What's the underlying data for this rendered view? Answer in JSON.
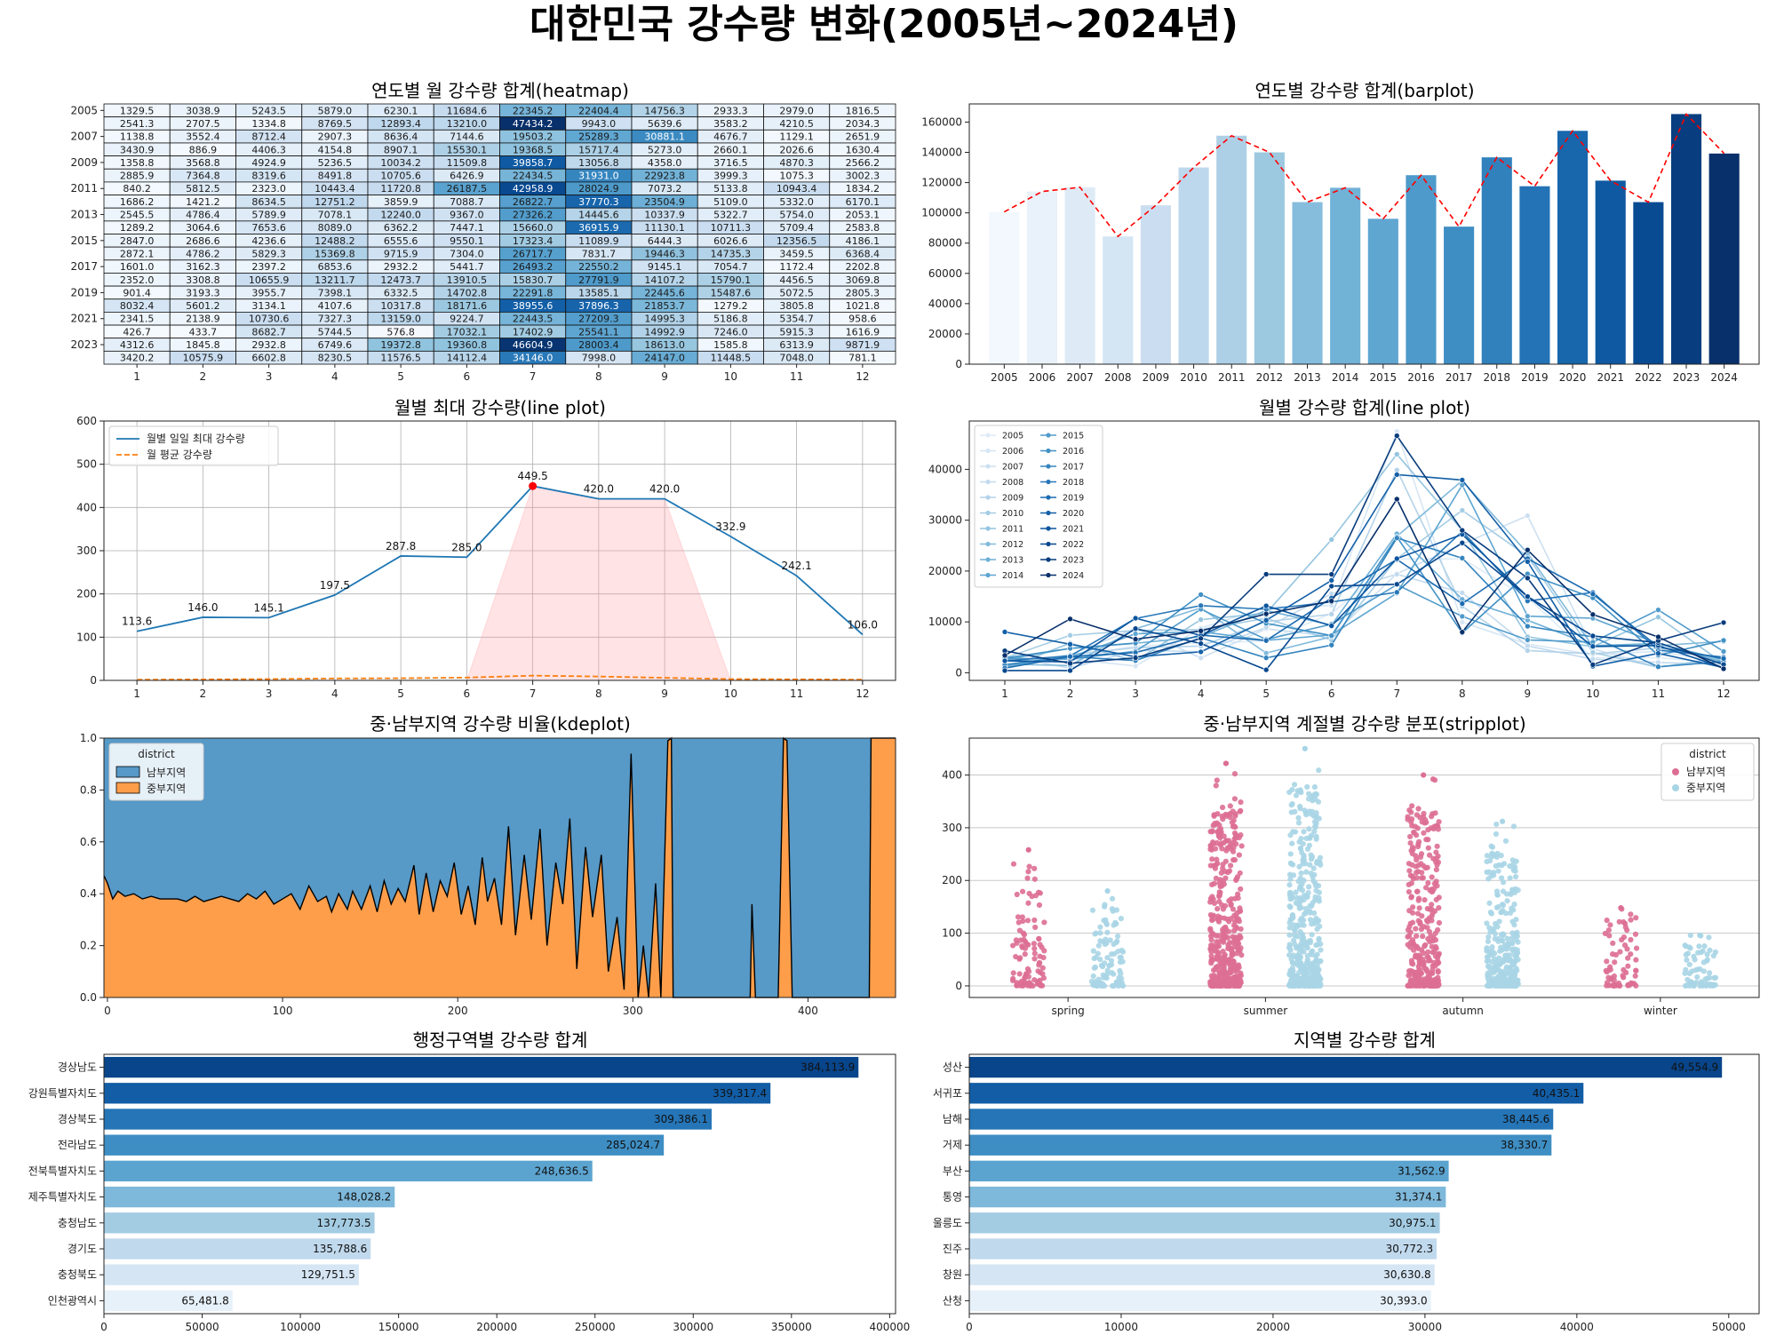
{
  "figure": {
    "title": "대한민국 강수량 변화(2005년~2024년)"
  },
  "chart_data": [
    {
      "id": "heatmap",
      "type": "heatmap",
      "title": "연도별 월 강수량 합계(heatmap)",
      "row_labels": [
        "2005",
        "",
        "2007",
        "",
        "2009",
        "",
        "2011",
        "",
        "2013",
        "",
        "2015",
        "",
        "2017",
        "",
        "2019",
        "",
        "2021",
        "",
        "2023",
        ""
      ],
      "col_labels": [
        "1",
        "2",
        "3",
        "4",
        "5",
        "6",
        "7",
        "8",
        "9",
        "10",
        "11",
        "12"
      ],
      "vmax": 47434.2,
      "values": [
        [
          1329.5,
          3038.9,
          5243.5,
          5879.0,
          6230.1,
          11684.6,
          22345.2,
          22404.4,
          14756.3,
          2933.3,
          2979.0,
          1816.5
        ],
        [
          2541.3,
          2707.5,
          1334.8,
          8769.5,
          12893.4,
          13210.0,
          47434.2,
          9943.0,
          5639.6,
          3583.2,
          4210.5,
          2034.3
        ],
        [
          1138.8,
          3552.4,
          8712.4,
          2907.3,
          8636.4,
          7144.6,
          19503.2,
          25289.3,
          30881.1,
          4676.7,
          1129.1,
          2651.9
        ],
        [
          3430.9,
          886.9,
          4406.3,
          4154.8,
          8907.1,
          15530.1,
          19368.5,
          15717.4,
          5273.0,
          2660.1,
          2026.6,
          1630.4
        ],
        [
          1358.8,
          3568.8,
          4924.9,
          5236.5,
          10034.2,
          11509.8,
          39858.7,
          13056.8,
          4358.0,
          3716.5,
          4870.3,
          2566.2
        ],
        [
          2885.9,
          7364.8,
          8319.6,
          8491.8,
          10705.6,
          6426.9,
          22434.5,
          31931.0,
          22923.8,
          3999.3,
          1075.3,
          3002.3
        ],
        [
          840.2,
          5812.5,
          2323.0,
          10443.4,
          11720.8,
          26187.5,
          42958.9,
          28024.9,
          7073.2,
          5133.8,
          10943.4,
          1834.2
        ],
        [
          1686.2,
          1421.2,
          8634.5,
          12751.2,
          3859.9,
          7088.7,
          26822.7,
          37770.3,
          23504.9,
          5109.0,
          5332.0,
          6170.1
        ],
        [
          2545.5,
          4786.4,
          5789.9,
          7078.1,
          12240.0,
          9367.0,
          27326.2,
          14445.6,
          10337.9,
          5322.7,
          5754.0,
          2053.1
        ],
        [
          1289.2,
          3064.6,
          7653.6,
          8089.0,
          6362.2,
          7447.1,
          15660.0,
          36915.9,
          11130.1,
          10711.3,
          5709.4,
          2583.8
        ],
        [
          2847.0,
          2686.6,
          4236.6,
          12488.2,
          6555.6,
          9550.1,
          17323.4,
          11089.9,
          6444.3,
          6026.6,
          12356.5,
          4186.1
        ],
        [
          2872.1,
          4786.2,
          5829.3,
          15369.8,
          9715.9,
          7304.0,
          26717.7,
          7831.7,
          19446.3,
          14735.3,
          3459.5,
          6368.4
        ],
        [
          1601.0,
          3162.3,
          2397.2,
          6853.6,
          2932.2,
          5441.7,
          26493.2,
          22550.2,
          9145.1,
          7054.7,
          1172.4,
          2202.8
        ],
        [
          2352.0,
          3308.8,
          10655.9,
          13211.7,
          12473.7,
          13910.5,
          15830.7,
          27791.9,
          14107.2,
          15790.1,
          4456.5,
          3069.8
        ],
        [
          901.4,
          3193.3,
          3955.7,
          7398.1,
          6332.5,
          14702.8,
          22291.8,
          13585.1,
          22445.6,
          15487.6,
          5072.5,
          2805.3
        ],
        [
          8032.4,
          5601.2,
          3134.1,
          4107.6,
          10317.8,
          18171.6,
          38955.6,
          37896.3,
          21853.7,
          1279.2,
          3805.8,
          1021.8
        ],
        [
          2341.5,
          2138.9,
          10730.6,
          7327.3,
          13159.0,
          9224.7,
          22443.5,
          27209.3,
          14995.3,
          5186.8,
          5354.7,
          958.6
        ],
        [
          426.7,
          433.7,
          8682.7,
          5744.5,
          576.8,
          17032.1,
          17402.9,
          25541.1,
          14992.9,
          7246.0,
          5915.3,
          1616.9
        ],
        [
          4312.6,
          1845.8,
          2932.8,
          6749.6,
          19372.8,
          19360.8,
          46604.9,
          28003.4,
          18613.0,
          1585.8,
          6313.9,
          9871.9
        ],
        [
          3420.2,
          10575.9,
          6602.8,
          8230.5,
          11576.5,
          14112.4,
          34146.0,
          7998.0,
          24147.0,
          11448.5,
          7048.0,
          781.1
        ]
      ]
    },
    {
      "id": "barplot",
      "type": "bar",
      "title": "연도별 강수량 합계(barplot)",
      "categories": [
        "2005",
        "2006",
        "2007",
        "2008",
        "2009",
        "2010",
        "2011",
        "2012",
        "2013",
        "2014",
        "2015",
        "2016",
        "2017",
        "2018",
        "2019",
        "2020",
        "2021",
        "2022",
        "2023",
        "2024"
      ],
      "values": [
        100641,
        114100,
        116900,
        84400,
        105000,
        130000,
        151000,
        140000,
        107100,
        116600,
        96100,
        124900,
        90900,
        136700,
        117600,
        154200,
        121300,
        107100,
        165300,
        139200
      ],
      "yticks": [
        0,
        20000,
        40000,
        60000,
        80000,
        100000,
        120000,
        140000,
        160000
      ],
      "ylim": [
        0,
        172000
      ],
      "overlay": "red dashed line"
    },
    {
      "id": "line_max",
      "type": "line",
      "title": "월별 최대 강수량(line plot)",
      "x": [
        1,
        2,
        3,
        4,
        5,
        6,
        7,
        8,
        9,
        10,
        11,
        12
      ],
      "series": [
        {
          "name": "월별 일일 최대 강수량",
          "values": [
            113.6,
            146.0,
            145.1,
            197.5,
            287.8,
            285.0,
            449.5,
            420.0,
            420.0,
            332.9,
            242.1,
            106.0
          ],
          "style": "solid",
          "color": "#1f77b4"
        },
        {
          "name": "월 평균 강수량",
          "values": [
            1.6,
            2.3,
            3.0,
            4.5,
            5.0,
            6.5,
            11.0,
            9.0,
            6.0,
            3.0,
            2.5,
            1.7
          ],
          "style": "dashed",
          "color": "#ff7f0e"
        }
      ],
      "point_labels": [
        "113.6",
        "146.0",
        "145.1",
        "197.5",
        "287.8",
        "285.0",
        "449.5",
        "420.0",
        "420.0",
        "332.9",
        "242.1",
        "106.0"
      ],
      "xticks": [
        "1",
        "2",
        "3",
        "4",
        "5",
        "6",
        "7",
        "8",
        "9",
        "10",
        "11",
        "12"
      ],
      "yticks": [
        "0",
        "100",
        "200",
        "300",
        "400",
        "500",
        "600"
      ],
      "ylim": [
        0,
        600
      ],
      "xlim": [
        0.5,
        12.5
      ],
      "grid": true,
      "legend": "upper-left",
      "highlight": "months 6-10 shaded light red, maximum marked with red dot"
    },
    {
      "id": "line_monthly",
      "type": "line",
      "title": "월별 강수량 합계(line plot)",
      "x": [
        1,
        2,
        3,
        4,
        5,
        6,
        7,
        8,
        9,
        10,
        11,
        12
      ],
      "legend_entries": [
        "2005",
        "2006",
        "2007",
        "2008",
        "2009",
        "2010",
        "2011",
        "2012",
        "2013",
        "2014",
        "2015",
        "2016",
        "2017",
        "2018",
        "2019",
        "2020",
        "2021",
        "2022",
        "2023",
        "2024"
      ],
      "xticks": [
        "1",
        "2",
        "3",
        "4",
        "5",
        "6",
        "7",
        "8",
        "9",
        "10",
        "11",
        "12"
      ],
      "yticks": [
        "0",
        "10000",
        "20000",
        "30000",
        "40000"
      ],
      "ylim": [
        -1500,
        49500
      ],
      "legend": "upper-left, two columns",
      "note": "series values are the heatmap rows"
    },
    {
      "id": "kde",
      "type": "area",
      "title": "중·남부지역 강수량 비율(kdeplot)",
      "legend_title": "district",
      "legend_entries": [
        "남부지역",
        "중부지역"
      ],
      "colors": {
        "남부지역": "#5799c7",
        "중부지역": "#ff9e4a"
      },
      "xticks": [
        "0",
        "100",
        "200",
        "300",
        "400"
      ],
      "yticks": [
        "0.0",
        "0.2",
        "0.4",
        "0.6",
        "0.8",
        "1.0"
      ],
      "xlim": [
        -2,
        450
      ],
      "ylim": [
        0,
        1
      ],
      "boundary": [
        [
          -2,
          0.47
        ],
        [
          0,
          0.44
        ],
        [
          3,
          0.38
        ],
        [
          6,
          0.41
        ],
        [
          10,
          0.39
        ],
        [
          15,
          0.4
        ],
        [
          20,
          0.38
        ],
        [
          25,
          0.39
        ],
        [
          30,
          0.38
        ],
        [
          35,
          0.38
        ],
        [
          40,
          0.38
        ],
        [
          45,
          0.37
        ],
        [
          50,
          0.39
        ],
        [
          55,
          0.37
        ],
        [
          60,
          0.38
        ],
        [
          65,
          0.39
        ],
        [
          70,
          0.38
        ],
        [
          75,
          0.37
        ],
        [
          80,
          0.4
        ],
        [
          85,
          0.38
        ],
        [
          90,
          0.41
        ],
        [
          95,
          0.36
        ],
        [
          100,
          0.38
        ],
        [
          105,
          0.4
        ],
        [
          110,
          0.34
        ],
        [
          115,
          0.43
        ],
        [
          120,
          0.37
        ],
        [
          125,
          0.39
        ],
        [
          128,
          0.33
        ],
        [
          132,
          0.4
        ],
        [
          137,
          0.34
        ],
        [
          140,
          0.41
        ],
        [
          145,
          0.34
        ],
        [
          150,
          0.43
        ],
        [
          154,
          0.33
        ],
        [
          158,
          0.45
        ],
        [
          162,
          0.36
        ],
        [
          166,
          0.42
        ],
        [
          170,
          0.37
        ],
        [
          175,
          0.51
        ],
        [
          178,
          0.32
        ],
        [
          182,
          0.48
        ],
        [
          186,
          0.33
        ],
        [
          190,
          0.45
        ],
        [
          194,
          0.39
        ],
        [
          198,
          0.52
        ],
        [
          202,
          0.32
        ],
        [
          206,
          0.43
        ],
        [
          210,
          0.28
        ],
        [
          214,
          0.54
        ],
        [
          217,
          0.37
        ],
        [
          221,
          0.46
        ],
        [
          225,
          0.28
        ],
        [
          229,
          0.66
        ],
        [
          233,
          0.24
        ],
        [
          238,
          0.55
        ],
        [
          242,
          0.3
        ],
        [
          247,
          0.65
        ],
        [
          251,
          0.2
        ],
        [
          256,
          0.52
        ],
        [
          260,
          0.36
        ],
        [
          264,
          0.69
        ],
        [
          268,
          0.11
        ],
        [
          273,
          0.58
        ],
        [
          277,
          0.31
        ],
        [
          282,
          0.55
        ],
        [
          286,
          0.1
        ],
        [
          291,
          0.31
        ],
        [
          295,
          0.03
        ],
        [
          299,
          0.94
        ],
        [
          303,
          0.0
        ],
        [
          306,
          0.2
        ],
        [
          309,
          0.0
        ],
        [
          313,
          0.44
        ],
        [
          316,
          0.0
        ],
        [
          320,
          0.99
        ],
        [
          322,
          1.0
        ],
        [
          323,
          0.0
        ],
        [
          367,
          0.0
        ],
        [
          368,
          0.36
        ],
        [
          370,
          0.0
        ],
        [
          380,
          0.0
        ],
        [
          383,
          0.0
        ],
        [
          386,
          1.0
        ],
        [
          388,
          0.99
        ],
        [
          391,
          0.0
        ],
        [
          435,
          0.0
        ],
        [
          436,
          1.0
        ],
        [
          450,
          1.0
        ]
      ]
    },
    {
      "id": "strip",
      "type": "scatter",
      "title": "중·남부지역 계절별 강수량 분포(stripplot)",
      "categories": [
        "spring",
        "summer",
        "autumn",
        "winter"
      ],
      "legend_title": "district",
      "legend_entries": [
        "남부지역",
        "중부지역"
      ],
      "colors": {
        "남부지역": "#dd6e94",
        "중부지역": "#a8d5e6"
      },
      "group_max": {
        "남부지역": [
          258,
          422,
          400,
          148
        ],
        "중부지역": [
          180,
          450,
          312,
          96
        ]
      },
      "yticks": [
        "0",
        "100",
        "200",
        "300",
        "400"
      ],
      "ylim": [
        -22,
        470
      ]
    },
    {
      "id": "hbar_province",
      "type": "bar",
      "orientation": "horizontal",
      "title": "행정구역별 강수량 합계",
      "categories": [
        "경상남도",
        "강원특별자치도",
        "경상북도",
        "전라남도",
        "전북특별자치도",
        "제주특별자치도",
        "충청남도",
        "경기도",
        "충청북도",
        "인천광역시"
      ],
      "values": [
        384113.9,
        339317.4,
        309386.1,
        285024.7,
        248636.5,
        148028.2,
        137773.5,
        135788.6,
        129751.5,
        65481.8
      ],
      "value_labels": [
        "384,113.9",
        "339,317.4",
        "309,386.1",
        "285,024.7",
        "248,636.5",
        "148,028.2",
        "137,773.5",
        "135,788.6",
        "129,751.5",
        "65,481.8"
      ],
      "xticks": [
        "0",
        "50000",
        "100000",
        "150000",
        "200000",
        "250000",
        "300000",
        "350000",
        "400000"
      ],
      "xlim": [
        0,
        403000
      ]
    },
    {
      "id": "hbar_station",
      "type": "bar",
      "orientation": "horizontal",
      "title": "지역별 강수량 합계",
      "categories": [
        "성산",
        "서귀포",
        "남해",
        "거제",
        "부산",
        "통영",
        "울릉도",
        "진주",
        "창원",
        "산청"
      ],
      "values": [
        49554.9,
        40435.1,
        38445.6,
        38330.7,
        31562.9,
        31374.1,
        30975.1,
        30772.3,
        30630.8,
        30393.0
      ],
      "value_labels": [
        "49,554.9",
        "40,435.1",
        "38,445.6",
        "38,330.7",
        "31,562.9",
        "31,374.1",
        "30,975.1",
        "30,772.3",
        "30,630.8",
        "30,393.0"
      ],
      "xticks": [
        "0",
        "10000",
        "20000",
        "30000",
        "40000",
        "50000"
      ],
      "xlim": [
        0,
        52000
      ]
    }
  ]
}
